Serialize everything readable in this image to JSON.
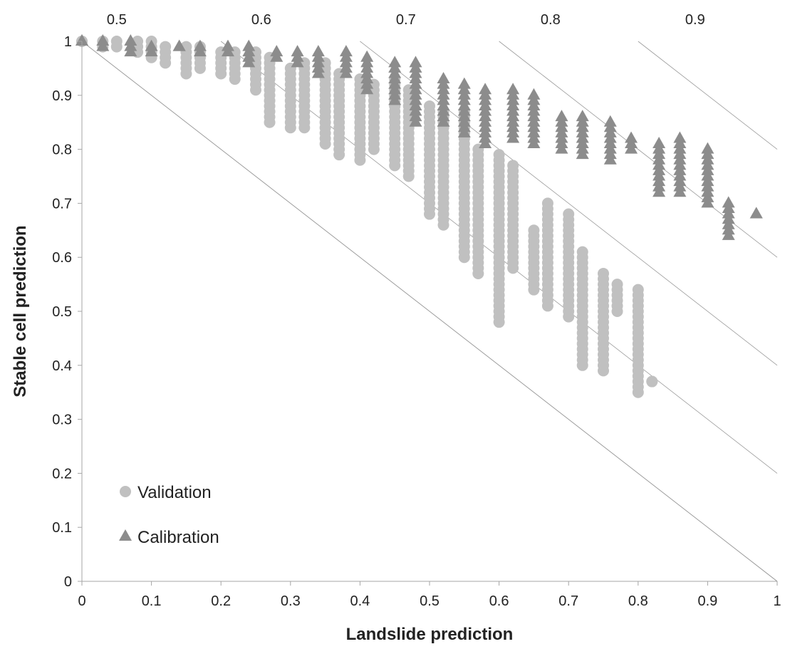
{
  "chart_data": {
    "type": "scatter",
    "title": "",
    "xlabel": "Landslide prediction",
    "ylabel": "Stable cell prediction",
    "xlim": [
      0,
      1
    ],
    "ylim": [
      0,
      1
    ],
    "xticks": [
      "0",
      "0.1",
      "0.2",
      "0.3",
      "0.4",
      "0.5",
      "0.6",
      "0.7",
      "0.8",
      "0.9",
      "1"
    ],
    "yticks": [
      "0",
      "0.1",
      "0.2",
      "0.3",
      "0.4",
      "0.5",
      "0.6",
      "0.7",
      "0.8",
      "0.9",
      "1"
    ],
    "grid": false,
    "legend_position": "bottom-left",
    "isolines": [
      {
        "label": "0.5",
        "value": 0.5
      },
      {
        "label": "0.6",
        "value": 0.6
      },
      {
        "label": "0.7",
        "value": 0.7
      },
      {
        "label": "0.8",
        "value": 0.8
      },
      {
        "label": "0.9",
        "value": 0.9
      }
    ],
    "series": [
      {
        "name": "Validation",
        "marker": "circle",
        "color": "#c0c0c0",
        "columns": [
          {
            "x": 0.0,
            "ymin": 1.0,
            "ymax": 1.0
          },
          {
            "x": 0.03,
            "ymin": 0.99,
            "ymax": 1.0
          },
          {
            "x": 0.05,
            "ymin": 0.99,
            "ymax": 1.0
          },
          {
            "x": 0.08,
            "ymin": 0.98,
            "ymax": 1.0
          },
          {
            "x": 0.1,
            "ymin": 0.97,
            "ymax": 1.0
          },
          {
            "x": 0.12,
            "ymin": 0.96,
            "ymax": 0.99
          },
          {
            "x": 0.15,
            "ymin": 0.94,
            "ymax": 0.99
          },
          {
            "x": 0.17,
            "ymin": 0.95,
            "ymax": 0.99
          },
          {
            "x": 0.2,
            "ymin": 0.94,
            "ymax": 0.98
          },
          {
            "x": 0.22,
            "ymin": 0.93,
            "ymax": 0.98
          },
          {
            "x": 0.25,
            "ymin": 0.91,
            "ymax": 0.98
          },
          {
            "x": 0.27,
            "ymin": 0.85,
            "ymax": 0.97
          },
          {
            "x": 0.3,
            "ymin": 0.84,
            "ymax": 0.95
          },
          {
            "x": 0.32,
            "ymin": 0.84,
            "ymax": 0.96
          },
          {
            "x": 0.35,
            "ymin": 0.81,
            "ymax": 0.96
          },
          {
            "x": 0.37,
            "ymin": 0.79,
            "ymax": 0.94
          },
          {
            "x": 0.4,
            "ymin": 0.78,
            "ymax": 0.93
          },
          {
            "x": 0.42,
            "ymin": 0.8,
            "ymax": 0.92
          },
          {
            "x": 0.45,
            "ymin": 0.77,
            "ymax": 0.93
          },
          {
            "x": 0.47,
            "ymin": 0.75,
            "ymax": 0.91
          },
          {
            "x": 0.5,
            "ymin": 0.68,
            "ymax": 0.88
          },
          {
            "x": 0.52,
            "ymin": 0.66,
            "ymax": 0.87
          },
          {
            "x": 0.55,
            "ymin": 0.6,
            "ymax": 0.87
          },
          {
            "x": 0.57,
            "ymin": 0.57,
            "ymax": 0.8
          },
          {
            "x": 0.6,
            "ymin": 0.48,
            "ymax": 0.79
          },
          {
            "x": 0.62,
            "ymin": 0.58,
            "ymax": 0.77
          },
          {
            "x": 0.65,
            "ymin": 0.54,
            "ymax": 0.65
          },
          {
            "x": 0.67,
            "ymin": 0.51,
            "ymax": 0.7
          },
          {
            "x": 0.7,
            "ymin": 0.49,
            "ymax": 0.68
          },
          {
            "x": 0.72,
            "ymin": 0.4,
            "ymax": 0.61
          },
          {
            "x": 0.75,
            "ymin": 0.39,
            "ymax": 0.57
          },
          {
            "x": 0.77,
            "ymin": 0.5,
            "ymax": 0.55
          },
          {
            "x": 0.8,
            "ymin": 0.35,
            "ymax": 0.54
          },
          {
            "x": 0.82,
            "ymin": 0.37,
            "ymax": 0.37
          }
        ]
      },
      {
        "name": "Calibration",
        "marker": "triangle",
        "color": "#8c8c8c",
        "columns": [
          {
            "x": 0.0,
            "ymin": 1.0,
            "ymax": 1.0
          },
          {
            "x": 0.03,
            "ymin": 0.99,
            "ymax": 1.0
          },
          {
            "x": 0.07,
            "ymin": 0.98,
            "ymax": 1.0
          },
          {
            "x": 0.1,
            "ymin": 0.98,
            "ymax": 0.99
          },
          {
            "x": 0.14,
            "ymin": 0.99,
            "ymax": 0.99
          },
          {
            "x": 0.17,
            "ymin": 0.98,
            "ymax": 0.99
          },
          {
            "x": 0.21,
            "ymin": 0.98,
            "ymax": 0.99
          },
          {
            "x": 0.24,
            "ymin": 0.96,
            "ymax": 0.99
          },
          {
            "x": 0.28,
            "ymin": 0.97,
            "ymax": 0.98
          },
          {
            "x": 0.31,
            "ymin": 0.96,
            "ymax": 0.98
          },
          {
            "x": 0.34,
            "ymin": 0.94,
            "ymax": 0.98
          },
          {
            "x": 0.38,
            "ymin": 0.94,
            "ymax": 0.98
          },
          {
            "x": 0.41,
            "ymin": 0.91,
            "ymax": 0.97
          },
          {
            "x": 0.45,
            "ymin": 0.89,
            "ymax": 0.96
          },
          {
            "x": 0.48,
            "ymin": 0.85,
            "ymax": 0.96
          },
          {
            "x": 0.52,
            "ymin": 0.85,
            "ymax": 0.93
          },
          {
            "x": 0.55,
            "ymin": 0.83,
            "ymax": 0.92
          },
          {
            "x": 0.58,
            "ymin": 0.81,
            "ymax": 0.91
          },
          {
            "x": 0.62,
            "ymin": 0.82,
            "ymax": 0.91
          },
          {
            "x": 0.65,
            "ymin": 0.81,
            "ymax": 0.9
          },
          {
            "x": 0.69,
            "ymin": 0.8,
            "ymax": 0.86
          },
          {
            "x": 0.72,
            "ymin": 0.79,
            "ymax": 0.86
          },
          {
            "x": 0.76,
            "ymin": 0.78,
            "ymax": 0.85
          },
          {
            "x": 0.79,
            "ymin": 0.8,
            "ymax": 0.82
          },
          {
            "x": 0.83,
            "ymin": 0.72,
            "ymax": 0.81
          },
          {
            "x": 0.86,
            "ymin": 0.72,
            "ymax": 0.82
          },
          {
            "x": 0.9,
            "ymin": 0.7,
            "ymax": 0.8
          },
          {
            "x": 0.93,
            "ymin": 0.64,
            "ymax": 0.7
          },
          {
            "x": 0.97,
            "ymin": 0.68,
            "ymax": 0.68
          }
        ]
      }
    ]
  }
}
